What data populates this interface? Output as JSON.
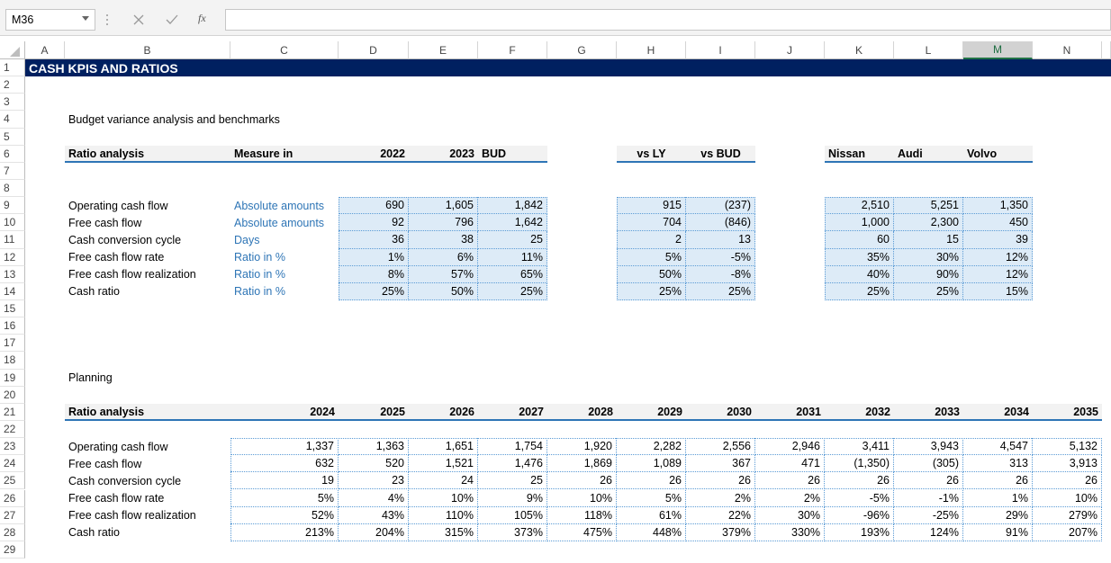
{
  "formula_bar": {
    "name_box": "M36",
    "function_icon": "fx"
  },
  "columns": [
    "A",
    "B",
    "C",
    "D",
    "E",
    "F",
    "G",
    "H",
    "I",
    "J",
    "K",
    "L",
    "M",
    "N"
  ],
  "selected_column": "M",
  "rows": [
    1,
    2,
    3,
    4,
    5,
    6,
    7,
    8,
    9,
    10,
    11,
    12,
    13,
    14,
    15,
    16,
    17,
    18,
    19,
    20,
    21,
    22,
    23,
    24,
    25,
    26,
    27,
    28,
    29
  ],
  "title": "CASH KPIS AND RATIOS",
  "section1": {
    "heading": "Budget variance analysis and benchmarks",
    "header": {
      "label": "Ratio analysis",
      "measure": "Measure in",
      "years": [
        "2022",
        "2023",
        "BUD"
      ],
      "variance": [
        "vs LY",
        "vs BUD"
      ],
      "benchmarks": [
        "Nissan",
        "Audi",
        "Volvo"
      ]
    },
    "rows": [
      {
        "label": "Operating cash flow",
        "measure": "Absolute amounts",
        "values": [
          "690",
          "1,605",
          "1,842"
        ],
        "variance": [
          "915",
          "(237)"
        ],
        "benchmarks": [
          "2,510",
          "5,251",
          "1,350"
        ]
      },
      {
        "label": "Free cash flow",
        "measure": "Absolute amounts",
        "values": [
          "92",
          "796",
          "1,642"
        ],
        "variance": [
          "704",
          "(846)"
        ],
        "benchmarks": [
          "1,000",
          "2,300",
          "450"
        ]
      },
      {
        "label": "Cash conversion cycle",
        "measure": "Days",
        "values": [
          "36",
          "38",
          "25"
        ],
        "variance": [
          "2",
          "13"
        ],
        "benchmarks": [
          "60",
          "15",
          "39"
        ]
      },
      {
        "label": "Free cash flow rate",
        "measure": "Ratio in %",
        "values": [
          "1%",
          "6%",
          "11%"
        ],
        "variance": [
          "5%",
          "-5%"
        ],
        "benchmarks": [
          "35%",
          "30%",
          "12%"
        ]
      },
      {
        "label": "Free cash flow realization",
        "measure": "Ratio in %",
        "values": [
          "8%",
          "57%",
          "65%"
        ],
        "variance": [
          "50%",
          "-8%"
        ],
        "benchmarks": [
          "40%",
          "90%",
          "12%"
        ]
      },
      {
        "label": "Cash ratio",
        "measure": "Ratio in %",
        "values": [
          "25%",
          "50%",
          "25%"
        ],
        "variance": [
          "25%",
          "25%"
        ],
        "benchmarks": [
          "25%",
          "25%",
          "15%"
        ]
      }
    ]
  },
  "section2": {
    "heading": "Planning",
    "header": {
      "label": "Ratio analysis",
      "years": [
        "2024",
        "2025",
        "2026",
        "2027",
        "2028",
        "2029",
        "2030",
        "2031",
        "2032",
        "2033",
        "2034",
        "2035"
      ]
    },
    "rows": [
      {
        "label": "Operating cash flow",
        "values": [
          "1,337",
          "1,363",
          "1,651",
          "1,754",
          "1,920",
          "2,282",
          "2,556",
          "2,946",
          "3,411",
          "3,943",
          "4,547",
          "5,132"
        ]
      },
      {
        "label": "Free cash flow",
        "values": [
          "632",
          "520",
          "1,521",
          "1,476",
          "1,869",
          "1,089",
          "367",
          "471",
          "(1,350)",
          "(305)",
          "313",
          "3,913"
        ]
      },
      {
        "label": "Cash conversion cycle",
        "values": [
          "19",
          "23",
          "24",
          "25",
          "26",
          "26",
          "26",
          "26",
          "26",
          "26",
          "26",
          "26"
        ]
      },
      {
        "label": "Free cash flow rate",
        "values": [
          "5%",
          "4%",
          "10%",
          "9%",
          "10%",
          "5%",
          "2%",
          "2%",
          "-5%",
          "-1%",
          "1%",
          "10%"
        ]
      },
      {
        "label": "Free cash flow realization",
        "values": [
          "52%",
          "43%",
          "110%",
          "105%",
          "118%",
          "61%",
          "22%",
          "30%",
          "-96%",
          "-25%",
          "29%",
          "279%"
        ]
      },
      {
        "label": "Cash ratio",
        "values": [
          "213%",
          "204%",
          "315%",
          "373%",
          "475%",
          "448%",
          "379%",
          "330%",
          "193%",
          "124%",
          "91%",
          "207%"
        ]
      }
    ]
  }
}
